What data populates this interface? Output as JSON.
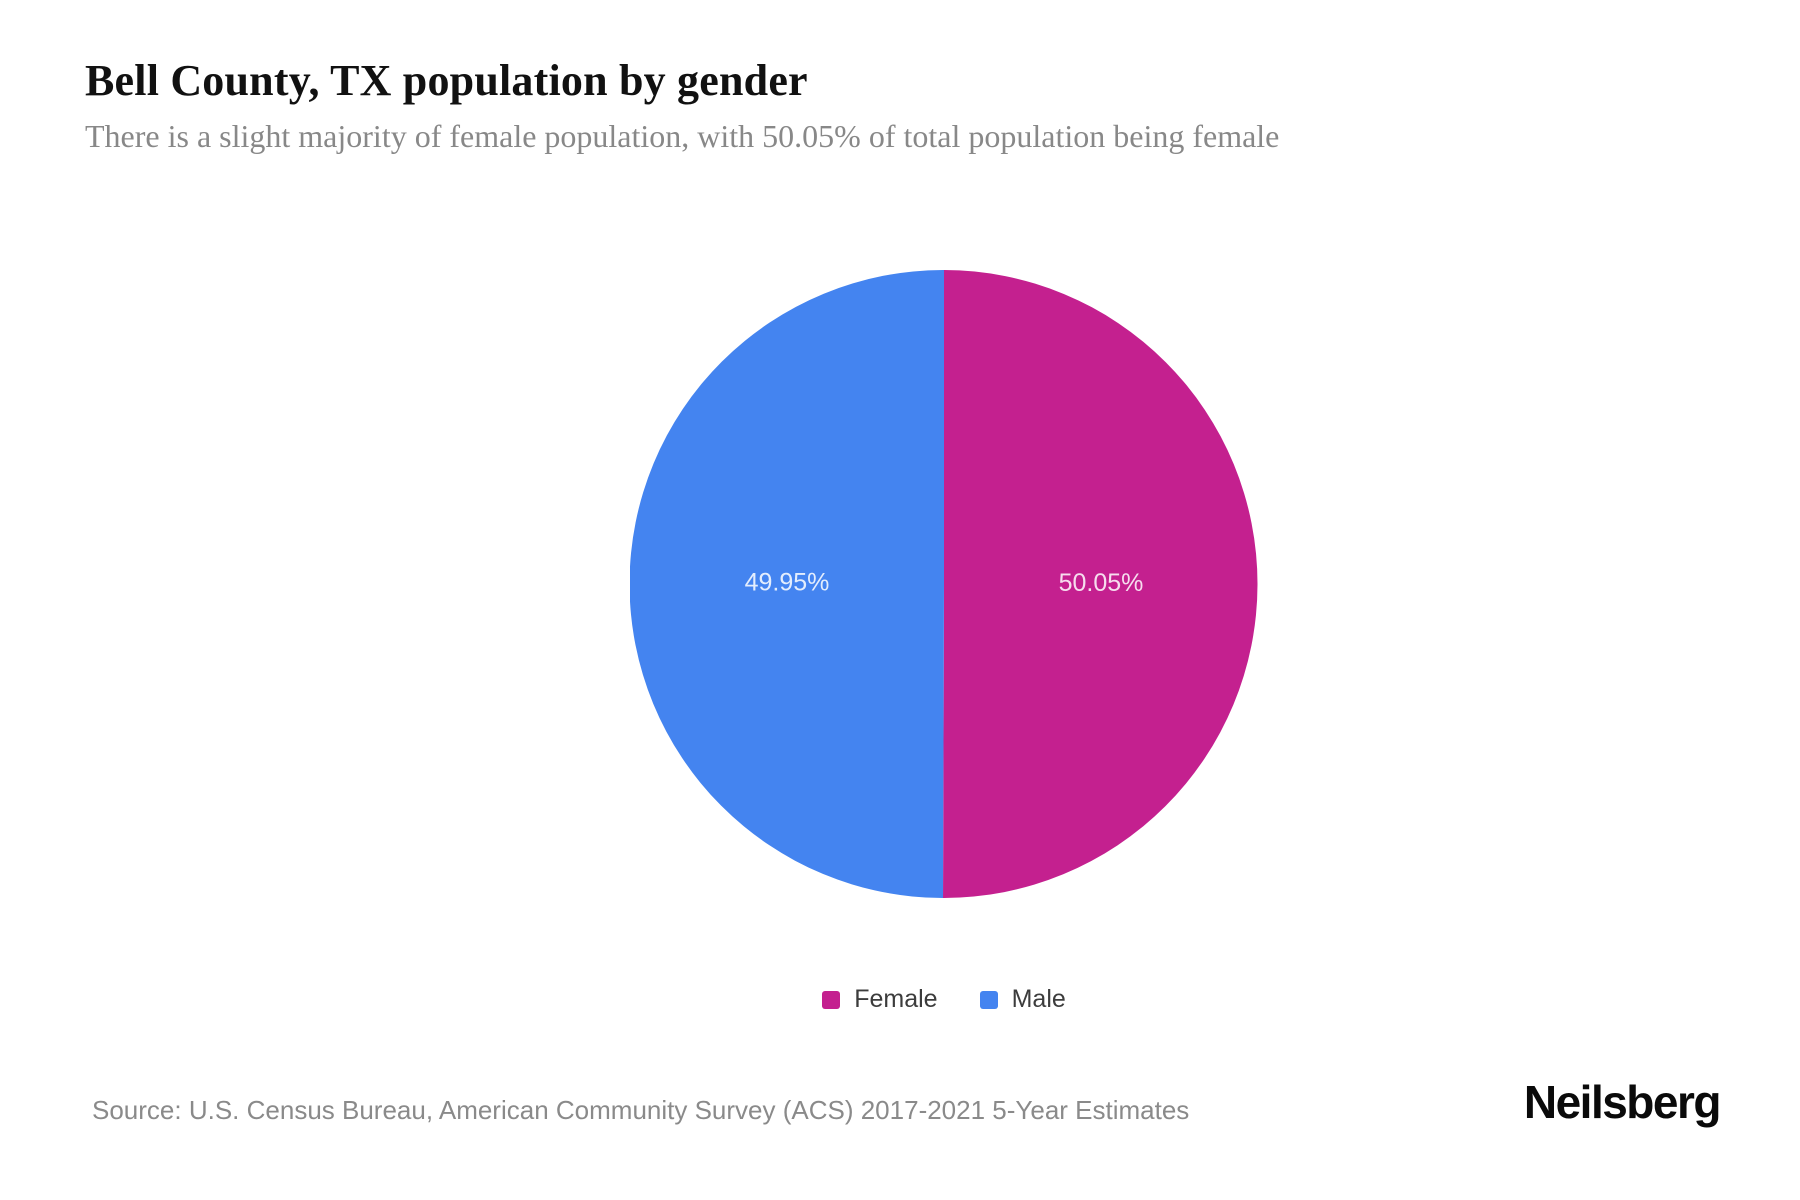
{
  "page": {
    "title": "Bell County, TX population by gender",
    "subtitle": "There is a slight majority of female population, with 50.05% of total population being female",
    "source": "Source: U.S. Census Bureau, American Community Survey (ACS) 2017-2021 5-Year Estimates",
    "brand": "Neilsberg"
  },
  "colors": {
    "female": "#C4208F",
    "male": "#4484F0",
    "slice_label_text": "#FFFFFF",
    "title_text": "#111111",
    "subtitle_text": "#888888",
    "source_text": "#8A8A8A",
    "legend_text": "#3C3C3C"
  },
  "chart_data": {
    "type": "pie",
    "title": "Bell County, TX population by gender",
    "categories": [
      "Female",
      "Male"
    ],
    "values": [
      50.05,
      49.95
    ],
    "slice_labels": [
      "50.05%",
      "49.95%"
    ],
    "slice_colors": [
      "#C4208F",
      "#4484F0"
    ],
    "start_angle_deg": 0,
    "direction": "clockwise",
    "label_radius_fraction": 0.5,
    "legend_position": "bottom"
  },
  "legend": {
    "items": [
      {
        "label": "Female",
        "color": "#C4208F"
      },
      {
        "label": "Male",
        "color": "#4484F0"
      }
    ]
  }
}
